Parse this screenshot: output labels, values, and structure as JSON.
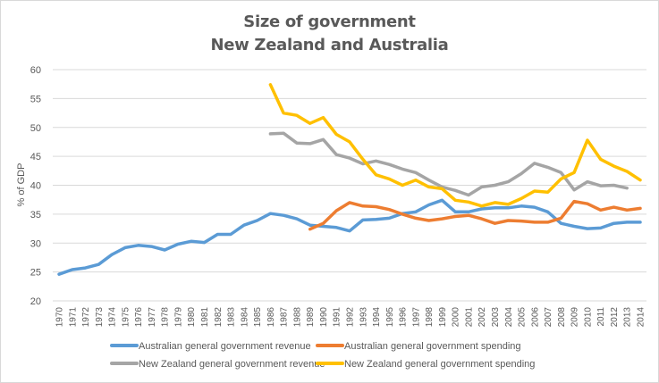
{
  "chart_data": {
    "type": "line",
    "title": "Size of government",
    "subtitle": "New Zealand and Australia",
    "xlabel": "",
    "ylabel": "% of GDP",
    "ylim": [
      20,
      60
    ],
    "yticks": [
      20,
      25,
      30,
      35,
      40,
      45,
      50,
      55,
      60
    ],
    "grid": true,
    "legend_position": "bottom",
    "x": [
      1970,
      1971,
      1972,
      1973,
      1974,
      1975,
      1976,
      1977,
      1978,
      1979,
      1980,
      1981,
      1982,
      1983,
      1984,
      1985,
      1986,
      1987,
      1988,
      1989,
      1990,
      1991,
      1992,
      1993,
      1994,
      1995,
      1996,
      1997,
      1998,
      1999,
      2000,
      2001,
      2002,
      2003,
      2004,
      2005,
      2006,
      2007,
      2008,
      2009,
      2010,
      2011,
      2012,
      2013,
      2014
    ],
    "series": [
      {
        "name": "Australian general government revenue",
        "color": "#5b9bd5",
        "values": [
          24.6,
          25.4,
          25.7,
          26.3,
          28.0,
          29.2,
          29.6,
          29.4,
          28.8,
          29.8,
          30.3,
          30.1,
          31.5,
          31.5,
          33.1,
          33.9,
          35.1,
          34.8,
          34.2,
          33.1,
          32.9,
          32.7,
          32.1,
          34.0,
          34.1,
          34.3,
          35.1,
          35.4,
          36.6,
          37.4,
          35.4,
          35.4,
          35.9,
          36.1,
          36.1,
          36.4,
          36.2,
          35.4,
          33.4,
          32.9,
          32.5,
          32.6,
          33.4,
          33.6,
          33.6
        ]
      },
      {
        "name": "Australian general government spending",
        "color": "#ed7d31",
        "values": [
          null,
          null,
          null,
          null,
          null,
          null,
          null,
          null,
          null,
          null,
          null,
          null,
          null,
          null,
          null,
          null,
          null,
          null,
          null,
          32.4,
          33.4,
          35.6,
          37.0,
          36.4,
          36.3,
          35.8,
          35.0,
          34.3,
          33.9,
          34.2,
          34.6,
          34.8,
          34.2,
          33.4,
          33.9,
          33.8,
          33.6,
          33.6,
          34.3,
          37.2,
          36.8,
          35.7,
          36.2,
          35.7,
          36.0
        ]
      },
      {
        "name": "New Zealand general government revenue",
        "color": "#a5a5a5",
        "values": [
          null,
          null,
          null,
          null,
          null,
          null,
          null,
          null,
          null,
          null,
          null,
          null,
          null,
          null,
          null,
          null,
          48.9,
          49.0,
          47.3,
          47.2,
          47.9,
          45.3,
          44.7,
          43.7,
          44.2,
          43.6,
          42.8,
          42.2,
          40.9,
          39.7,
          39.1,
          38.3,
          39.7,
          40.0,
          40.6,
          42.0,
          43.8,
          43.1,
          42.2,
          39.2,
          40.6,
          39.9,
          40.0,
          39.5,
          null
        ]
      },
      {
        "name": "New Zealand general government spending",
        "color": "#ffc000",
        "values": [
          null,
          null,
          null,
          null,
          null,
          null,
          null,
          null,
          null,
          null,
          null,
          null,
          null,
          null,
          null,
          null,
          57.4,
          52.5,
          52.1,
          50.7,
          51.7,
          48.8,
          47.5,
          44.5,
          41.8,
          41.1,
          40.0,
          40.9,
          39.7,
          39.4,
          37.4,
          37.1,
          36.4,
          37.0,
          36.7,
          37.7,
          39.0,
          38.8,
          41.1,
          42.2,
          47.8,
          44.5,
          43.3,
          42.4,
          40.9
        ]
      }
    ]
  }
}
